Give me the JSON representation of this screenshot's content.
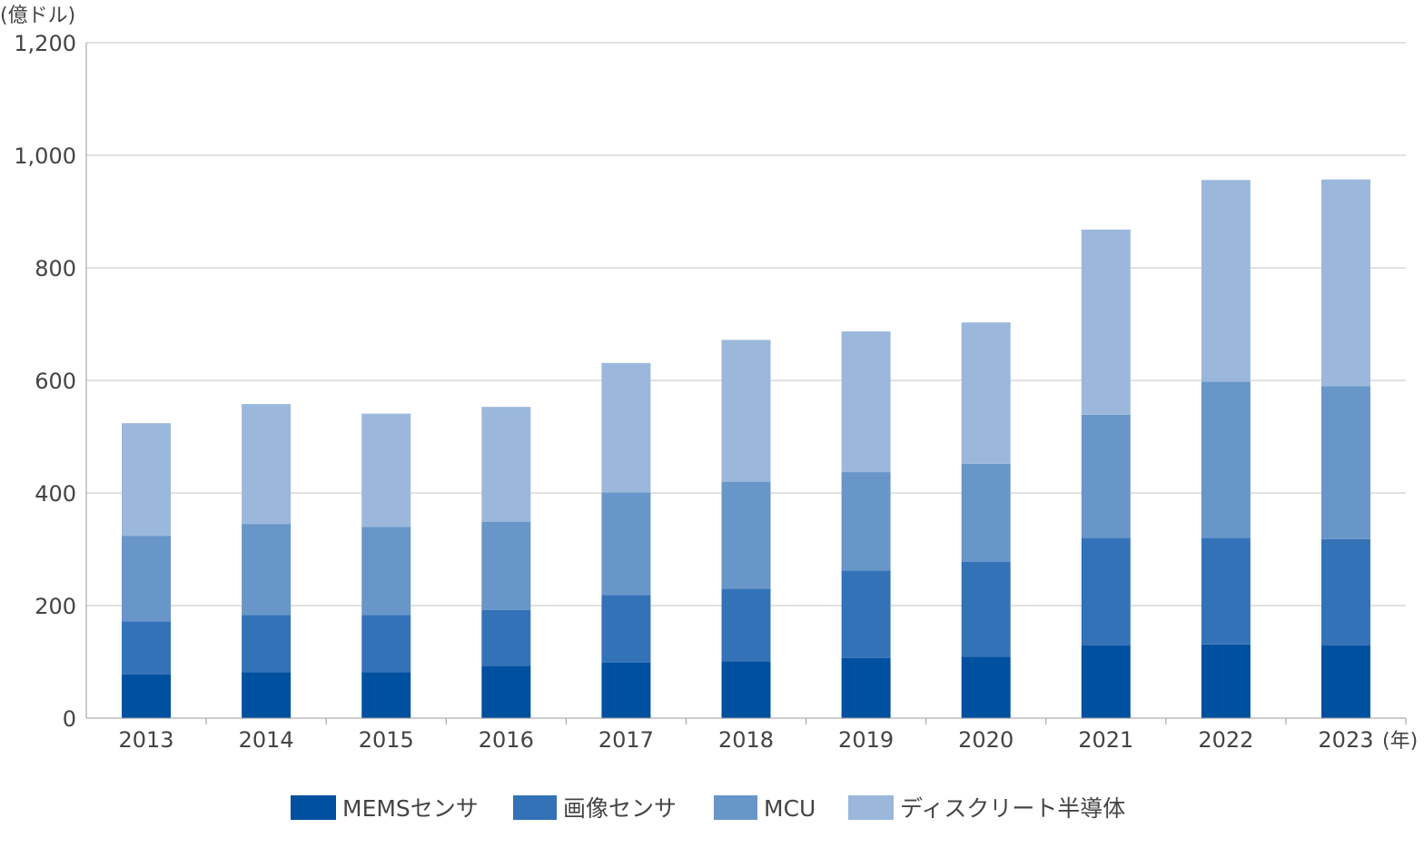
{
  "chart_data": {
    "type": "bar",
    "stacked": true,
    "ylabel": "(億ドル)",
    "xlabel": "(年)",
    "ylim": [
      0,
      1200
    ],
    "yticks": [
      "0",
      "200",
      "400",
      "600",
      "800",
      "1,000",
      "1,200"
    ],
    "ytick_values": [
      0,
      200,
      400,
      600,
      800,
      1000,
      1200
    ],
    "grid": true,
    "legend_position": "bottom",
    "categories": [
      "2013",
      "2014",
      "2015",
      "2016",
      "2017",
      "2018",
      "2019",
      "2020",
      "2021",
      "2022",
      "2023"
    ],
    "series": [
      {
        "name": "MEMSセンサ",
        "color": "#0050a0",
        "values": [
          78,
          82,
          82,
          93,
          99,
          101,
          107,
          109,
          129,
          131,
          129
        ]
      },
      {
        "name": "画像センサ",
        "color": "#3472b8",
        "values": [
          94,
          101,
          101,
          99,
          120,
          129,
          155,
          169,
          191,
          189,
          189
        ]
      },
      {
        "name": "MCU",
        "color": "#6896c8",
        "values": [
          152,
          162,
          157,
          157,
          182,
          190,
          175,
          174,
          219,
          278,
          272
        ]
      },
      {
        "name": "ディスクリート半導体",
        "color": "#9bb8dc",
        "values": [
          200,
          213,
          201,
          204,
          230,
          252,
          250,
          251,
          329,
          358,
          367
        ]
      }
    ]
  }
}
